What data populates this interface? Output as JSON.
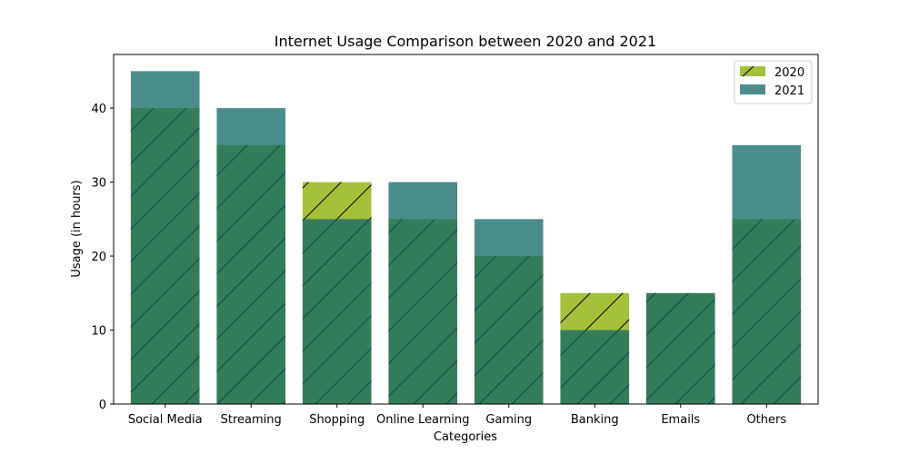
{
  "chart_data": {
    "type": "bar",
    "title": "Internet Usage Comparison between 2020 and 2021",
    "xlabel": "Categories",
    "ylabel": "Usage (in hours)",
    "categories": [
      "Social Media",
      "Streaming",
      "Shopping",
      "Online Learning",
      "Gaming",
      "Banking",
      "Emails",
      "Others"
    ],
    "series": [
      {
        "name": "2020",
        "values": [
          40,
          35,
          30,
          25,
          20,
          15,
          15,
          25
        ],
        "color": "#a3c13b",
        "hatch": "/"
      },
      {
        "name": "2021",
        "values": [
          45,
          40,
          25,
          30,
          25,
          10,
          15,
          35
        ],
        "color": "#0f6565"
      }
    ],
    "ylim": [
      0,
      47.25
    ],
    "yticks": [
      0,
      10,
      20,
      30,
      40
    ],
    "grid": false,
    "legend": "top-right",
    "overlay": true
  }
}
